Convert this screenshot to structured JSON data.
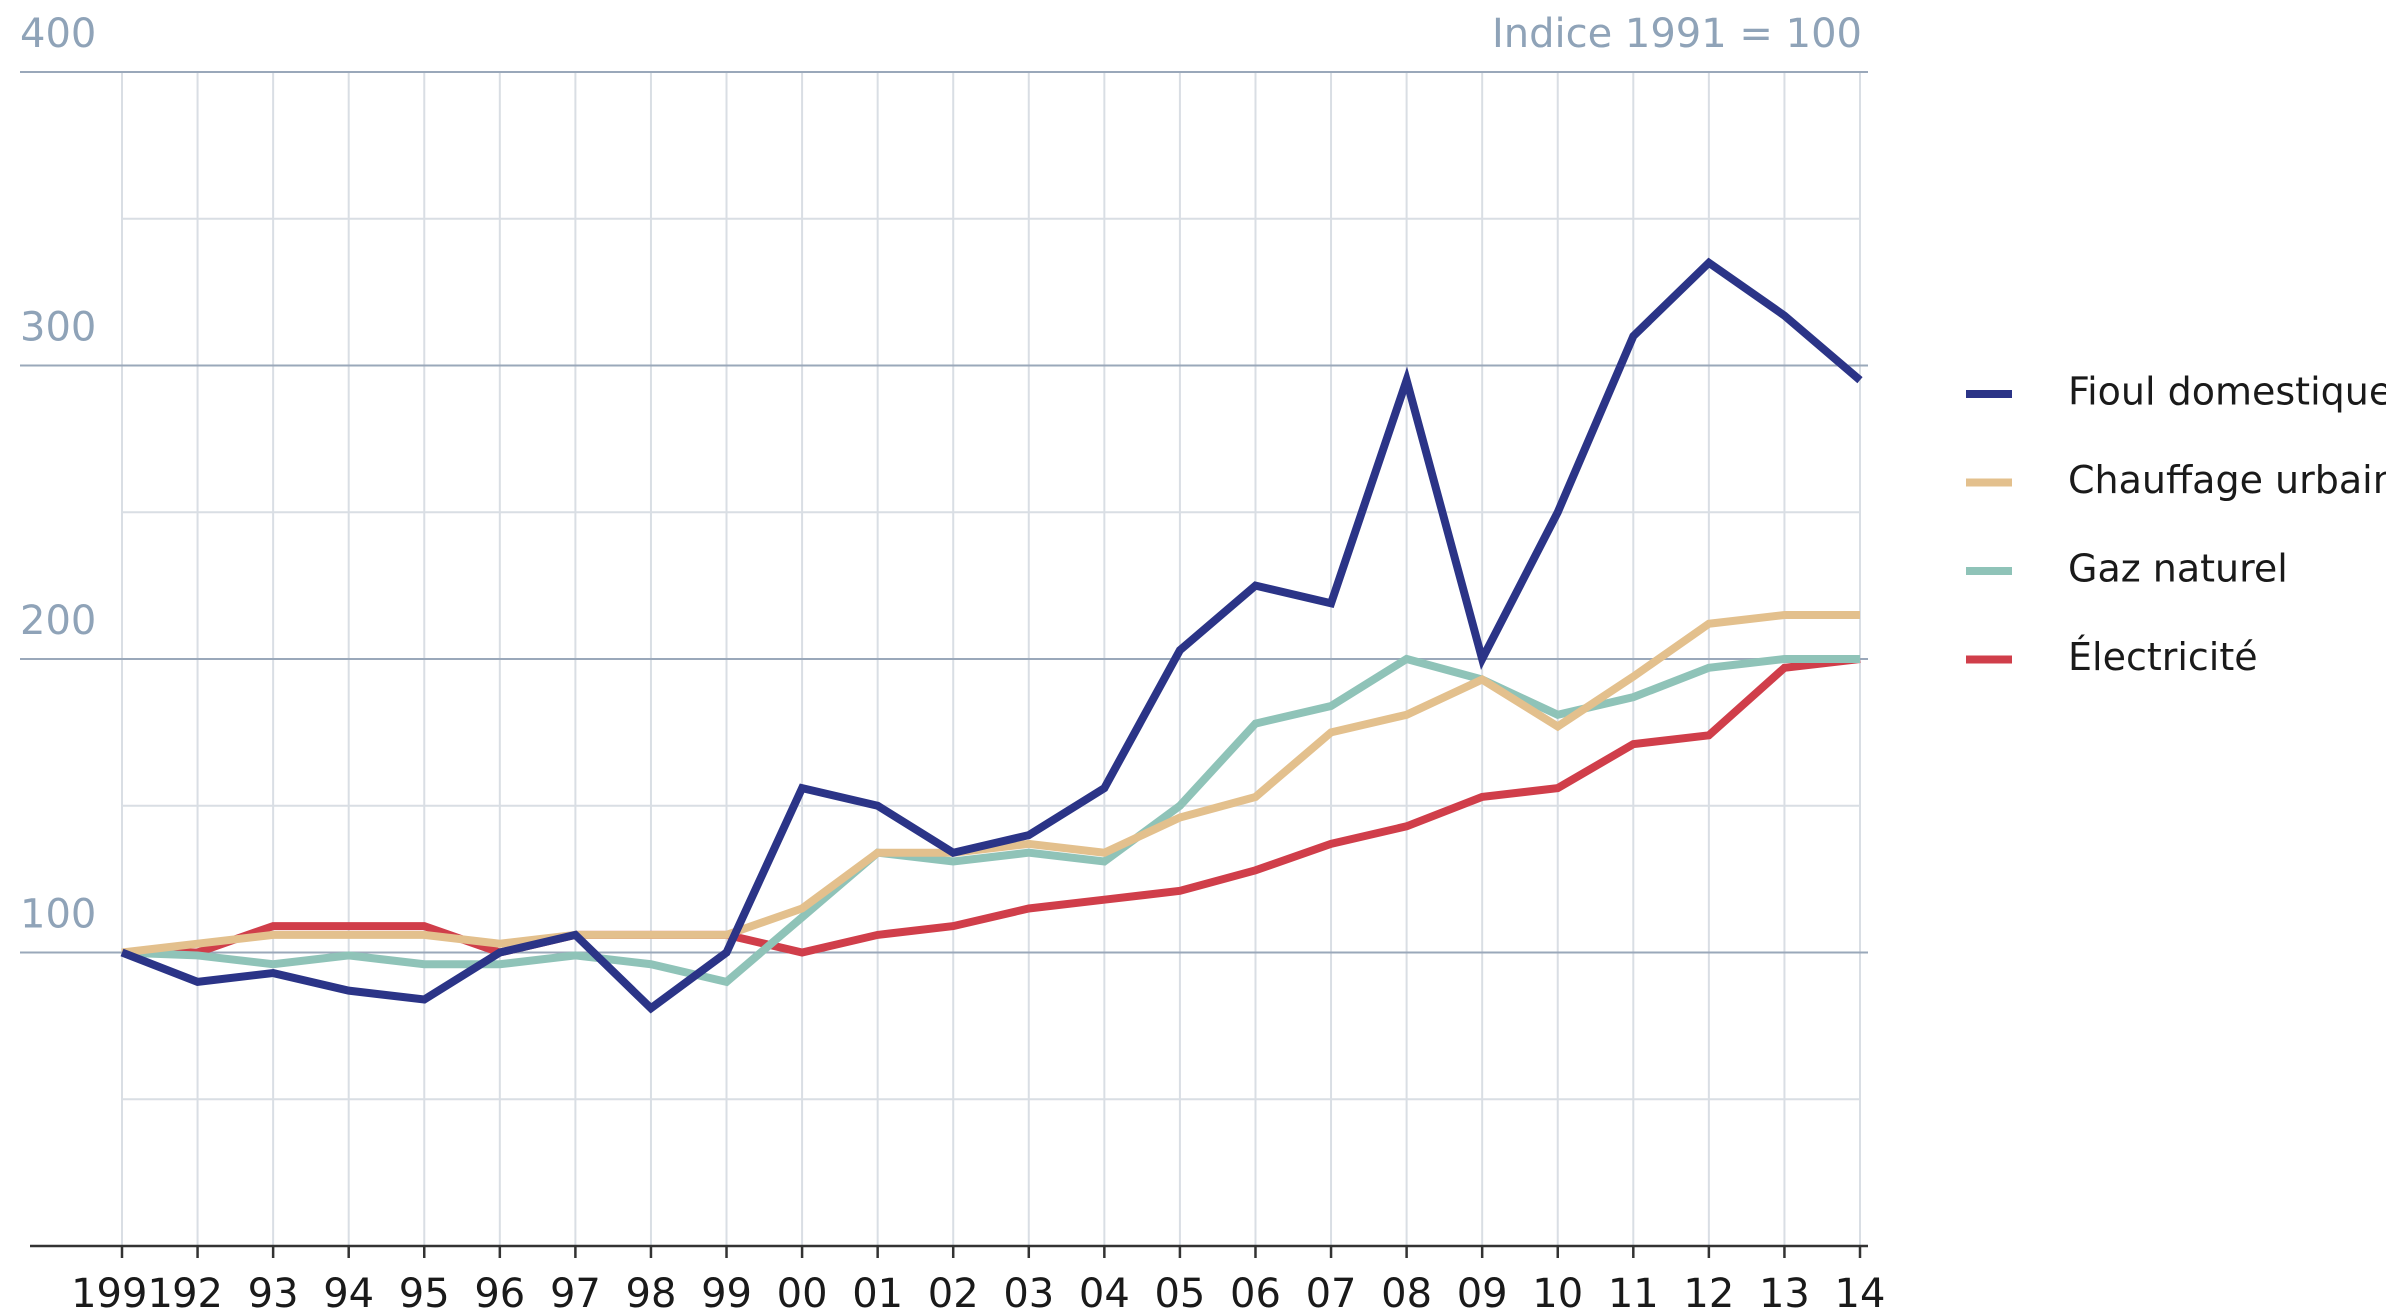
{
  "chart_data": {
    "type": "line",
    "annotation": "Indice 1991 = 100",
    "categories": [
      "1991",
      "92",
      "93",
      "94",
      "95",
      "96",
      "97",
      "98",
      "99",
      "00",
      "01",
      "02",
      "03",
      "04",
      "05",
      "06",
      "07",
      "08",
      "09",
      "10",
      "11",
      "12",
      "13",
      "14"
    ],
    "series": [
      {
        "name": "Fioul domestique",
        "color": "#2b3487",
        "values": [
          100,
          90,
          93,
          87,
          84,
          100,
          106,
          81,
          100,
          156,
          150,
          134,
          140,
          156,
          203,
          225,
          219,
          295,
          200,
          250,
          310,
          335,
          317,
          295
        ]
      },
      {
        "name": "Chauffage urbain",
        "color": "#e3c08d",
        "values": [
          100,
          103,
          106,
          106,
          106,
          103,
          106,
          106,
          106,
          115,
          134,
          134,
          137,
          134,
          146,
          153,
          175,
          181,
          193,
          177,
          194,
          212,
          215,
          215
        ]
      },
      {
        "name": "Gaz naturel",
        "color": "#8fc3b8",
        "values": [
          100,
          99,
          96,
          99,
          96,
          96,
          99,
          96,
          90,
          112,
          134,
          131,
          134,
          131,
          150,
          178,
          184,
          200,
          193,
          181,
          187,
          197,
          200,
          200
        ]
      },
      {
        "name": "Électricité",
        "color": "#d03e4a",
        "values": [
          100,
          100,
          109,
          109,
          109,
          100,
          106,
          106,
          106,
          100,
          106,
          109,
          115,
          118,
          121,
          128,
          137,
          143,
          153,
          156,
          171,
          174,
          197,
          200
        ]
      }
    ],
    "ylim": [
      0,
      400
    ],
    "yticks": [
      100,
      200,
      300,
      400
    ],
    "minor_yticks": [
      50,
      150,
      250,
      350
    ],
    "grid": true,
    "legend": "right"
  }
}
